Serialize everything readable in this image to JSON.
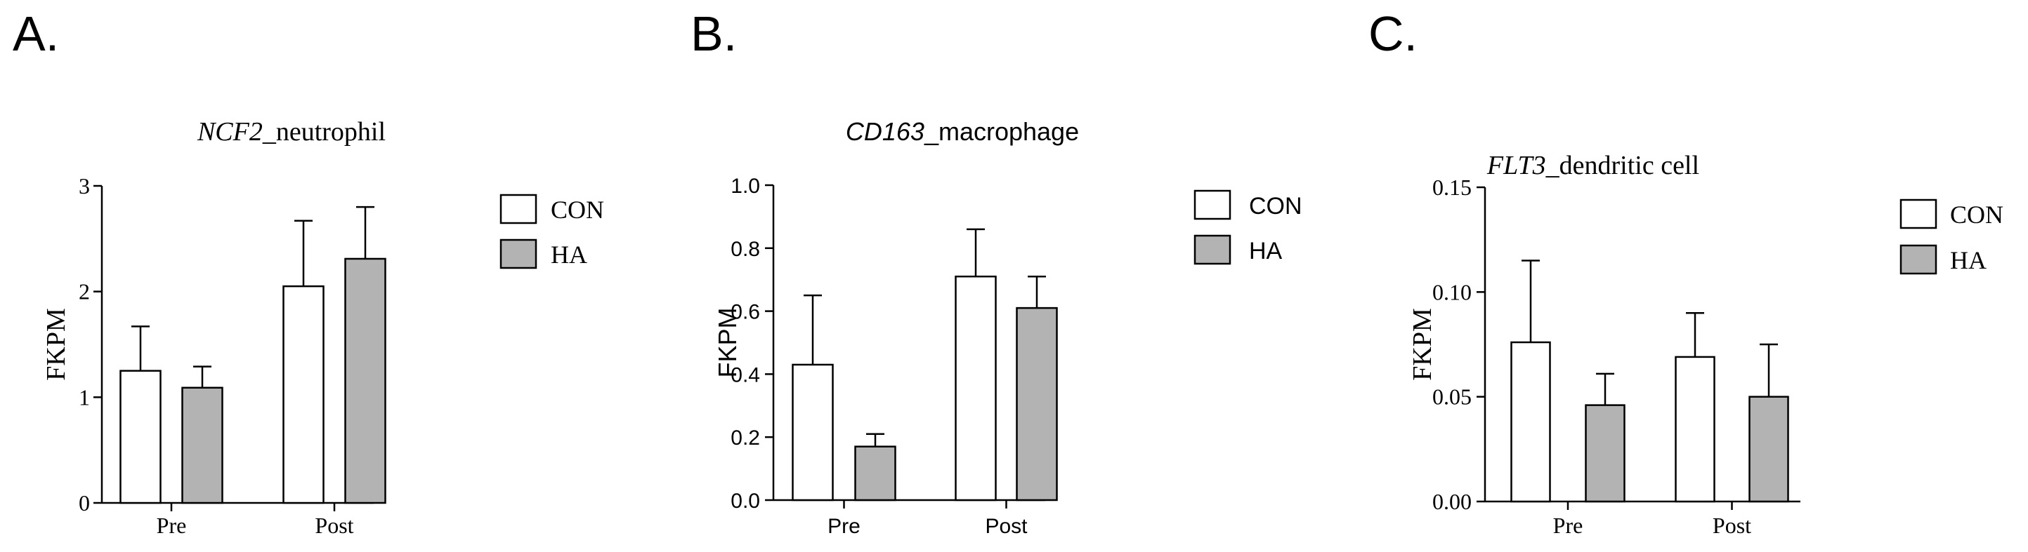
{
  "colors": {
    "con_fill": "#ffffff",
    "ha_fill": "#b3b3b3",
    "stroke": "#000000"
  },
  "chart_data": [
    {
      "panel_letter": "A.",
      "type": "bar",
      "title_italic": "NCF2",
      "title_rest": "_neutrophil",
      "ylabel": "FKPM",
      "xlabel": "",
      "categories": [
        "Pre",
        "Post"
      ],
      "series": [
        {
          "name": "CON",
          "values": [
            1.25,
            2.05
          ],
          "errors": [
            0.42,
            0.62
          ]
        },
        {
          "name": "HA",
          "values": [
            1.09,
            2.31
          ],
          "errors": [
            0.2,
            0.49
          ]
        }
      ],
      "ylim": [
        0,
        3
      ],
      "yticks": [
        "0",
        "1",
        "2",
        "3"
      ],
      "grid": false,
      "legend_position": "right"
    },
    {
      "panel_letter": "B.",
      "type": "bar",
      "title_italic": "CD163",
      "title_rest": "_macrophage",
      "ylabel": "FKPM",
      "xlabel": "",
      "categories": [
        "Pre",
        "Post"
      ],
      "series": [
        {
          "name": "CON",
          "values": [
            0.43,
            0.71
          ],
          "errors": [
            0.22,
            0.15
          ]
        },
        {
          "name": "HA",
          "values": [
            0.17,
            0.61
          ],
          "errors": [
            0.04,
            0.1
          ]
        }
      ],
      "ylim": [
        0,
        1.0
      ],
      "yticks": [
        "0.0",
        "0.2",
        "0.4",
        "0.6",
        "0.8",
        "1.0"
      ],
      "grid": false,
      "legend_position": "right"
    },
    {
      "panel_letter": "C.",
      "type": "bar",
      "title_italic": "FLT3",
      "title_rest": "_dendritic cell",
      "ylabel": "FKPM",
      "xlabel": "",
      "categories": [
        "Pre",
        "Post"
      ],
      "series": [
        {
          "name": "CON",
          "values": [
            0.076,
            0.069
          ],
          "errors": [
            0.039,
            0.021
          ]
        },
        {
          "name": "HA",
          "values": [
            0.046,
            0.05
          ],
          "errors": [
            0.015,
            0.025
          ]
        }
      ],
      "ylim": [
        0,
        0.15
      ],
      "yticks": [
        "0.00",
        "0.05",
        "0.10",
        "0.15"
      ],
      "grid": false,
      "legend_position": "right"
    }
  ]
}
